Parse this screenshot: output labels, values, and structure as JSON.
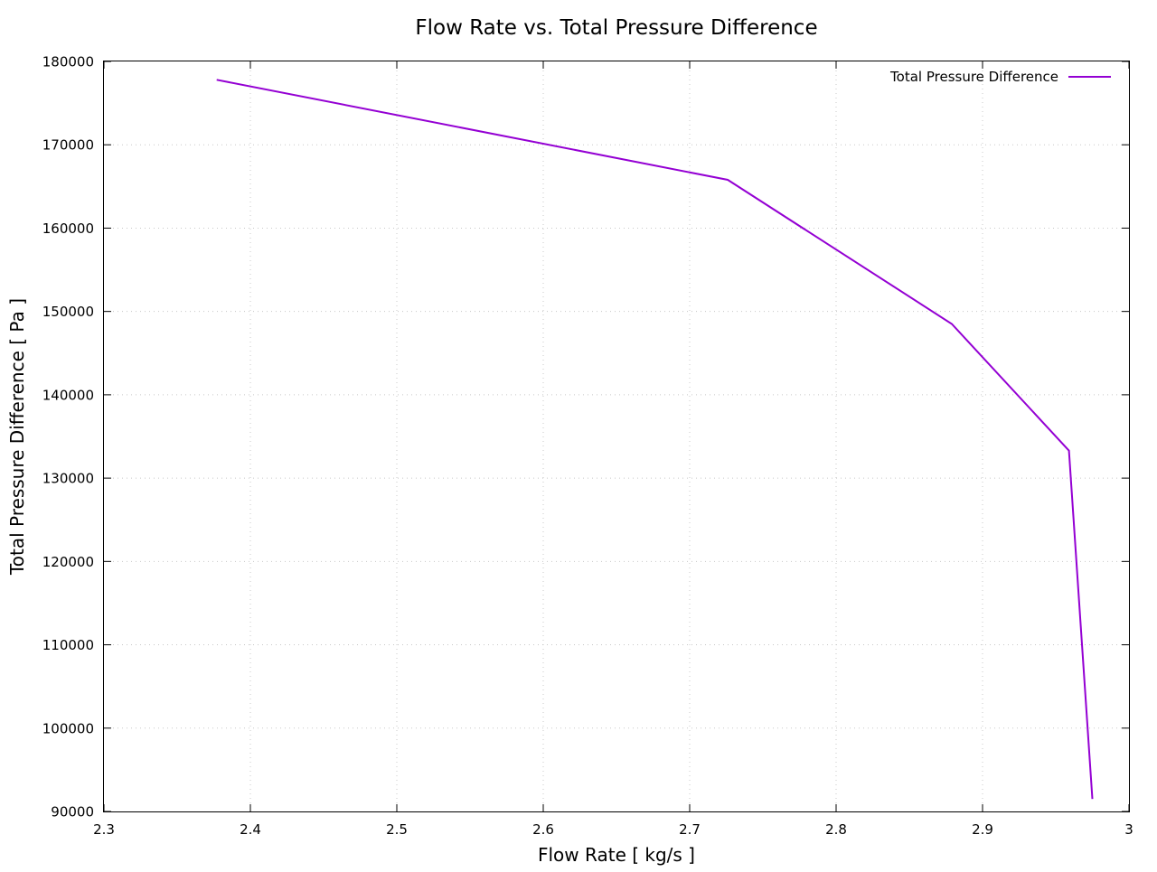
{
  "chart_data": {
    "type": "line",
    "title": "Flow Rate vs. Total Pressure Difference",
    "xlabel": "Flow Rate [ kg/s ]",
    "ylabel": "Total Pressure Difference [ Pa ]",
    "xlim": [
      2.3,
      3.0
    ],
    "ylim": [
      90000,
      180000
    ],
    "xticks": [
      2.3,
      2.4,
      2.5,
      2.6,
      2.7,
      2.8,
      2.9,
      3.0
    ],
    "xtick_labels": [
      "2.3",
      "2.4",
      "2.5",
      "2.6",
      "2.7",
      "2.8",
      "2.9",
      "3"
    ],
    "yticks": [
      90000,
      100000,
      110000,
      120000,
      130000,
      140000,
      150000,
      160000,
      170000,
      180000
    ],
    "ytick_labels": [
      "90000",
      "100000",
      "110000",
      "120000",
      "130000",
      "140000",
      "150000",
      "160000",
      "170000",
      "180000"
    ],
    "grid": true,
    "legend_position": "top-right",
    "series": [
      {
        "name": "Total Pressure Difference",
        "color": "#9400d3",
        "x": [
          2.377,
          2.726,
          2.879,
          2.959,
          2.975
        ],
        "y": [
          177800,
          165800,
          148500,
          133300,
          91500
        ]
      }
    ]
  }
}
